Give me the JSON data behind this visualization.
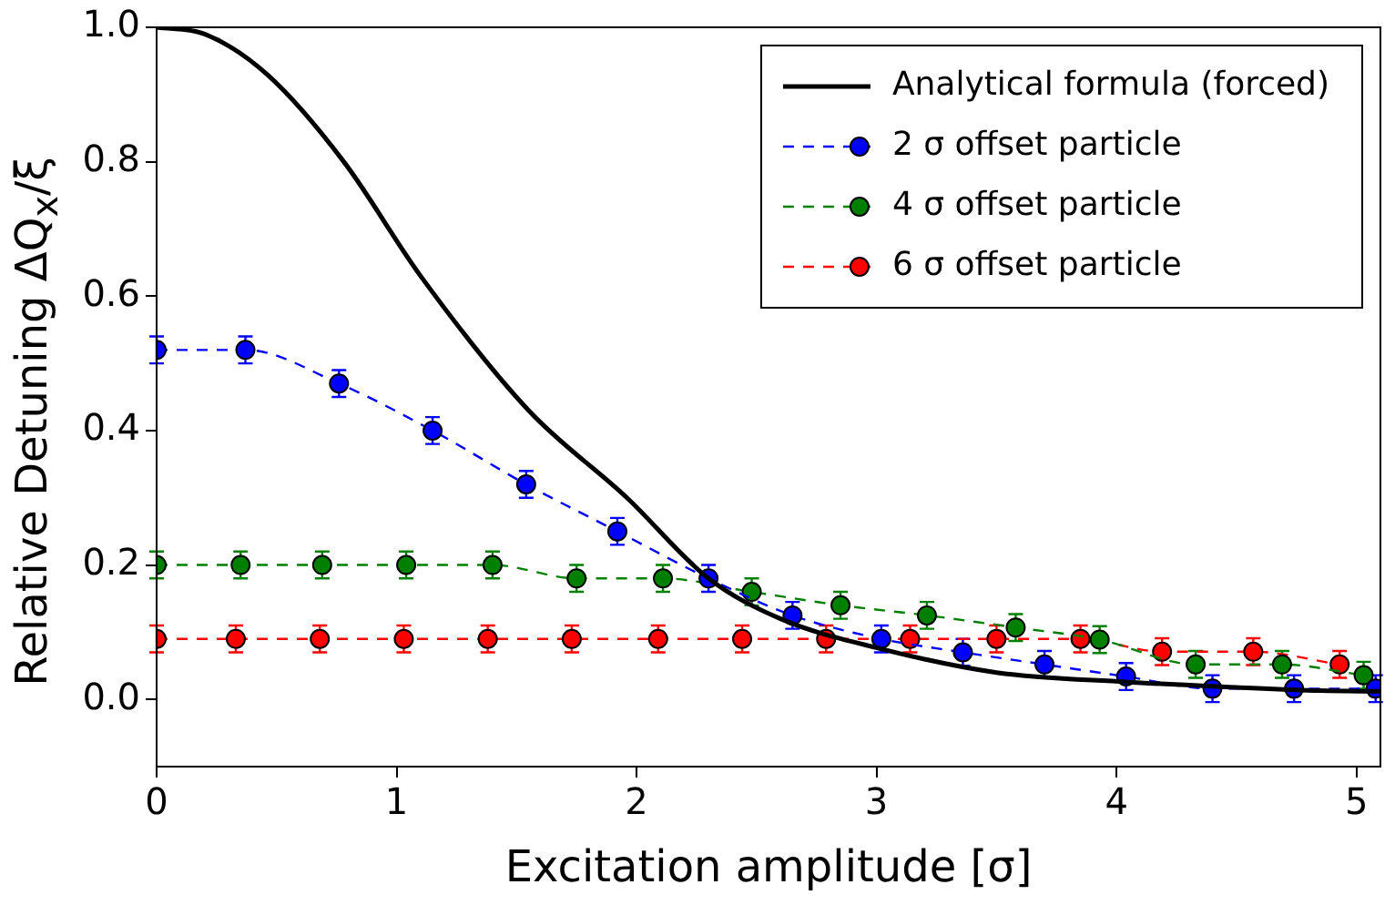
{
  "chart_data": {
    "type": "line",
    "xlabel": "Excitation amplitude [σ]",
    "ylabel": "Relative Detuning ΔQ$_{x}$/ξ",
    "xlim": [
      0,
      5.1
    ],
    "xticks": [
      0,
      1,
      2,
      3,
      4,
      5
    ],
    "ylim": [
      -0.1,
      1.0
    ],
    "yticks": [
      {
        "value": 0,
        "label": "0.0"
      },
      {
        "value": 0.2,
        "label": "0.2"
      },
      {
        "value": 0.4,
        "label": "0.4"
      },
      {
        "value": 0.6,
        "label": "0.6"
      },
      {
        "value": 0.8,
        "label": "0.8"
      },
      {
        "value": 1.0,
        "label": "1.0"
      }
    ],
    "grid": false,
    "legend": "top right",
    "series": [
      {
        "name": "Analytical formula (forced)",
        "color": "#000000",
        "marker": "none",
        "line_style": "solid",
        "x": [
          0,
          0.2,
          0.46,
          0.78,
          1.1,
          1.55,
          1.96,
          2.3,
          2.6,
          3.01,
          3.5,
          4.04,
          4.5,
          4.85,
          5.1
        ],
        "values": [
          1.0,
          0.99,
          0.93,
          0.8,
          0.63,
          0.43,
          0.3,
          0.18,
          0.12,
          0.076,
          0.04,
          0.026,
          0.018,
          0.013,
          0.012
        ]
      },
      {
        "name": "2 σ offset particle",
        "color": "#0000ff",
        "marker": "circle",
        "line_style": "dashed",
        "x": [
          0,
          0.37,
          0.76,
          1.15,
          1.54,
          1.92,
          2.3,
          2.65,
          3.02,
          3.36,
          3.7,
          4.04,
          4.4,
          4.74,
          5.08
        ],
        "values": [
          0.52,
          0.52,
          0.47,
          0.4,
          0.32,
          0.25,
          0.18,
          0.125,
          0.09,
          0.07,
          0.052,
          0.034,
          0.016,
          0.016,
          0.016
        ],
        "errors": [
          0.02,
          0.02,
          0.02,
          0.02,
          0.02,
          0.02,
          0.02,
          0.02,
          0.02,
          0.02,
          0.02,
          0.02,
          0.02,
          0.02,
          0.02
        ]
      },
      {
        "name": "4 σ offset particle",
        "color": "#007f00",
        "marker": "circle",
        "line_style": "dashed",
        "x": [
          0,
          0.35,
          0.69,
          1.04,
          1.4,
          1.75,
          2.11,
          2.48,
          2.85,
          3.21,
          3.58,
          3.93,
          4.33,
          4.69,
          5.03
        ],
        "values": [
          0.2,
          0.2,
          0.2,
          0.2,
          0.2,
          0.18,
          0.18,
          0.16,
          0.14,
          0.125,
          0.107,
          0.089,
          0.052,
          0.052,
          0.036
        ],
        "errors": [
          0.02,
          0.02,
          0.02,
          0.02,
          0.02,
          0.02,
          0.02,
          0.02,
          0.02,
          0.02,
          0.02,
          0.02,
          0.02,
          0.02,
          0.02
        ]
      },
      {
        "name": "6 σ offset particle",
        "color": "#ff0000",
        "marker": "circle",
        "line_style": "dashed",
        "x": [
          0,
          0.33,
          0.68,
          1.03,
          1.38,
          1.73,
          2.09,
          2.44,
          2.79,
          3.14,
          3.5,
          3.85,
          4.19,
          4.57,
          4.93
        ],
        "values": [
          0.09,
          0.09,
          0.09,
          0.09,
          0.09,
          0.09,
          0.09,
          0.09,
          0.09,
          0.09,
          0.09,
          0.09,
          0.071,
          0.071,
          0.052
        ],
        "errors": [
          0.02,
          0.02,
          0.02,
          0.02,
          0.02,
          0.02,
          0.02,
          0.02,
          0.02,
          0.02,
          0.02,
          0.02,
          0.02,
          0.02,
          0.02
        ]
      }
    ]
  }
}
